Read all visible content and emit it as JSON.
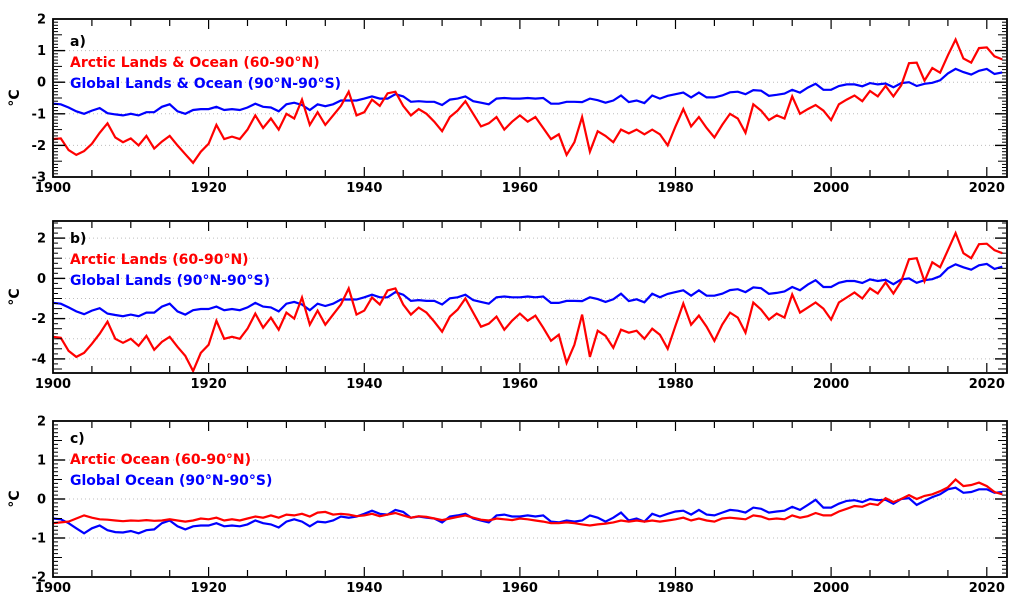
{
  "figure": {
    "unit_label": "°C",
    "background": "#ffffff",
    "colors": {
      "arctic_series": "#ff0000",
      "global_series": "#0000ff",
      "axis": "#000000",
      "gridline": "#bdbdbd"
    },
    "x_axis": {
      "range": [
        1900,
        2022.6
      ],
      "label_years": [
        1900,
        1920,
        1940,
        1960,
        1980,
        2000,
        2020
      ],
      "minor_tick_step_years": 5
    }
  },
  "chart_data": [
    {
      "type": "line",
      "id": "a",
      "panel_label": "a)",
      "ylabel": "°C",
      "x_years": {
        "start": 1900,
        "end": 2022,
        "step": 1
      },
      "ylim": [
        -3,
        2
      ],
      "yticks": [
        -3,
        -2,
        -1,
        0,
        1,
        2
      ],
      "y_minor_step": 0.1,
      "y_medium_step": 0.5,
      "grid": "dotted-horizontal-every-1",
      "legend_position": "top-left",
      "series": [
        {
          "name": "Arctic Lands & Ocean (60-90°N)",
          "color": "#ff0000",
          "values": [
            -1.8,
            -1.78,
            -2.15,
            -2.3,
            -2.18,
            -1.95,
            -1.6,
            -1.3,
            -1.75,
            -1.9,
            -1.78,
            -2.0,
            -1.7,
            -2.1,
            -1.88,
            -1.7,
            -2.0,
            -2.28,
            -2.55,
            -2.2,
            -1.95,
            -1.35,
            -1.8,
            -1.72,
            -1.8,
            -1.5,
            -1.05,
            -1.45,
            -1.15,
            -1.5,
            -1.0,
            -1.15,
            -0.55,
            -1.35,
            -0.95,
            -1.35,
            -1.05,
            -0.75,
            -0.3,
            -1.05,
            -0.95,
            -0.55,
            -0.75,
            -0.35,
            -0.3,
            -0.75,
            -1.05,
            -0.85,
            -1.0,
            -1.25,
            -1.55,
            -1.1,
            -0.9,
            -0.6,
            -1.0,
            -1.4,
            -1.3,
            -1.1,
            -1.5,
            -1.25,
            -1.05,
            -1.25,
            -1.1,
            -1.45,
            -1.8,
            -1.65,
            -2.3,
            -1.9,
            -1.1,
            -2.2,
            -1.55,
            -1.7,
            -1.9,
            -1.5,
            -1.62,
            -1.5,
            -1.65,
            -1.5,
            -1.65,
            -2.0,
            -1.4,
            -0.85,
            -1.4,
            -1.1,
            -1.45,
            -1.75,
            -1.35,
            -1.0,
            -1.15,
            -1.6,
            -0.7,
            -0.9,
            -1.2,
            -1.05,
            -1.15,
            -0.45,
            -1.0,
            -0.85,
            -0.72,
            -0.9,
            -1.2,
            -0.7,
            -0.55,
            -0.42,
            -0.6,
            -0.28,
            -0.45,
            -0.12,
            -0.45,
            -0.1,
            0.6,
            0.62,
            0.05,
            0.45,
            0.3,
            0.85,
            1.35,
            0.75,
            0.62,
            1.08,
            1.1,
            0.82,
            0.72
          ]
        },
        {
          "name": "Global Lands & Ocean (90°N-90°S)",
          "color": "#0000ff",
          "values": [
            -0.68,
            -0.7,
            -0.8,
            -0.92,
            -1.0,
            -0.9,
            -0.82,
            -0.98,
            -1.02,
            -1.05,
            -1.0,
            -1.05,
            -0.95,
            -0.95,
            -0.78,
            -0.7,
            -0.92,
            -1.0,
            -0.88,
            -0.85,
            -0.85,
            -0.78,
            -0.88,
            -0.85,
            -0.88,
            -0.8,
            -0.68,
            -0.78,
            -0.8,
            -0.92,
            -0.7,
            -0.65,
            -0.72,
            -0.88,
            -0.7,
            -0.76,
            -0.7,
            -0.58,
            -0.58,
            -0.58,
            -0.52,
            -0.45,
            -0.52,
            -0.52,
            -0.38,
            -0.45,
            -0.62,
            -0.6,
            -0.62,
            -0.62,
            -0.72,
            -0.55,
            -0.52,
            -0.45,
            -0.6,
            -0.65,
            -0.7,
            -0.52,
            -0.5,
            -0.52,
            -0.52,
            -0.5,
            -0.52,
            -0.5,
            -0.68,
            -0.68,
            -0.62,
            -0.62,
            -0.63,
            -0.52,
            -0.57,
            -0.65,
            -0.58,
            -0.42,
            -0.63,
            -0.58,
            -0.66,
            -0.42,
            -0.52,
            -0.43,
            -0.38,
            -0.33,
            -0.48,
            -0.33,
            -0.48,
            -0.48,
            -0.42,
            -0.32,
            -0.3,
            -0.38,
            -0.25,
            -0.27,
            -0.43,
            -0.4,
            -0.36,
            -0.24,
            -0.33,
            -0.17,
            -0.05,
            -0.24,
            -0.24,
            -0.12,
            -0.07,
            -0.07,
            -0.13,
            -0.03,
            -0.07,
            -0.04,
            -0.16,
            -0.03,
            0.0,
            -0.12,
            -0.05,
            -0.02,
            0.06,
            0.28,
            0.42,
            0.32,
            0.24,
            0.36,
            0.42,
            0.26,
            0.31
          ]
        }
      ]
    },
    {
      "type": "line",
      "id": "b",
      "panel_label": "b)",
      "ylabel": "°C",
      "x_years": {
        "start": 1900,
        "end": 2022,
        "step": 1
      },
      "ylim": [
        -4.7,
        2.85
      ],
      "yticks": [
        -4,
        -2,
        0,
        2
      ],
      "y_minor_step": 0.25,
      "y_medium_step": 0.5,
      "grid": "dotted-horizontal-every-1",
      "legend_position": "top-left",
      "series": [
        {
          "name": "Arctic Lands (60-90°N)",
          "color": "#ff0000",
          "values": [
            -2.9,
            -2.95,
            -3.6,
            -3.9,
            -3.7,
            -3.25,
            -2.75,
            -2.15,
            -3.0,
            -3.2,
            -3.0,
            -3.35,
            -2.85,
            -3.55,
            -3.15,
            -2.9,
            -3.4,
            -3.85,
            -4.6,
            -3.7,
            -3.3,
            -2.1,
            -3.0,
            -2.9,
            -3.0,
            -2.5,
            -1.75,
            -2.45,
            -1.95,
            -2.55,
            -1.7,
            -2.0,
            -0.95,
            -2.3,
            -1.6,
            -2.3,
            -1.8,
            -1.3,
            -0.5,
            -1.8,
            -1.6,
            -0.95,
            -1.3,
            -0.6,
            -0.5,
            -1.3,
            -1.8,
            -1.45,
            -1.7,
            -2.15,
            -2.65,
            -1.9,
            -1.55,
            -1.0,
            -1.7,
            -2.4,
            -2.25,
            -1.9,
            -2.55,
            -2.1,
            -1.75,
            -2.1,
            -1.85,
            -2.45,
            -3.1,
            -2.8,
            -4.2,
            -3.3,
            -1.8,
            -3.9,
            -2.6,
            -2.85,
            -3.45,
            -2.55,
            -2.7,
            -2.6,
            -3.0,
            -2.5,
            -2.8,
            -3.5,
            -2.35,
            -1.25,
            -2.3,
            -1.85,
            -2.4,
            -3.1,
            -2.3,
            -1.7,
            -1.95,
            -2.7,
            -1.2,
            -1.55,
            -2.05,
            -1.75,
            -1.95,
            -0.8,
            -1.7,
            -1.45,
            -1.2,
            -1.5,
            -2.05,
            -1.2,
            -0.95,
            -0.7,
            -1.0,
            -0.5,
            -0.75,
            -0.2,
            -0.75,
            -0.15,
            0.95,
            1.0,
            -0.15,
            0.8,
            0.55,
            1.4,
            2.25,
            1.25,
            1.0,
            1.7,
            1.72,
            1.4,
            1.25
          ]
        },
        {
          "name": "Global Lands (90°N-90°S)",
          "color": "#0000ff",
          "values": [
            -1.22,
            -1.26,
            -1.44,
            -1.64,
            -1.78,
            -1.6,
            -1.48,
            -1.75,
            -1.82,
            -1.88,
            -1.8,
            -1.88,
            -1.7,
            -1.7,
            -1.4,
            -1.26,
            -1.64,
            -1.8,
            -1.58,
            -1.52,
            -1.52,
            -1.4,
            -1.58,
            -1.52,
            -1.58,
            -1.44,
            -1.22,
            -1.4,
            -1.44,
            -1.64,
            -1.26,
            -1.17,
            -1.3,
            -1.58,
            -1.26,
            -1.37,
            -1.26,
            -1.05,
            -1.05,
            -1.05,
            -0.94,
            -0.81,
            -0.94,
            -0.94,
            -0.68,
            -0.81,
            -1.12,
            -1.08,
            -1.12,
            -1.12,
            -1.3,
            -0.99,
            -0.94,
            -0.81,
            -1.08,
            -1.17,
            -1.26,
            -0.94,
            -0.9,
            -0.94,
            -0.94,
            -0.9,
            -0.94,
            -0.9,
            -1.22,
            -1.22,
            -1.12,
            -1.12,
            -1.13,
            -0.94,
            -1.03,
            -1.17,
            -1.04,
            -0.76,
            -1.13,
            -1.04,
            -1.19,
            -0.76,
            -0.94,
            -0.77,
            -0.68,
            -0.59,
            -0.86,
            -0.59,
            -0.86,
            -0.86,
            -0.76,
            -0.58,
            -0.54,
            -0.68,
            -0.45,
            -0.49,
            -0.77,
            -0.72,
            -0.65,
            -0.43,
            -0.59,
            -0.31,
            -0.09,
            -0.43,
            -0.43,
            -0.22,
            -0.13,
            -0.13,
            -0.23,
            -0.05,
            -0.13,
            -0.07,
            -0.29,
            -0.05,
            0.0,
            -0.22,
            -0.09,
            -0.04,
            0.11,
            0.5,
            0.7,
            0.55,
            0.43,
            0.65,
            0.72,
            0.47,
            0.58
          ]
        }
      ]
    },
    {
      "type": "line",
      "id": "c",
      "panel_label": "c)",
      "ylabel": "°C",
      "x_years": {
        "start": 1900,
        "end": 2022,
        "step": 1
      },
      "ylim": [
        -2,
        2
      ],
      "yticks": [
        -2,
        -1,
        0,
        1,
        2
      ],
      "y_minor_step": 0.1,
      "y_medium_step": 0.5,
      "grid": "dotted-horizontal-every-1",
      "legend_position": "top-left",
      "series": [
        {
          "name": "Arctic Ocean (60-90°N)",
          "color": "#ff0000",
          "values": [
            -0.62,
            -0.6,
            -0.58,
            -0.5,
            -0.42,
            -0.48,
            -0.52,
            -0.53,
            -0.55,
            -0.57,
            -0.55,
            -0.56,
            -0.54,
            -0.56,
            -0.55,
            -0.52,
            -0.55,
            -0.58,
            -0.55,
            -0.5,
            -0.52,
            -0.48,
            -0.55,
            -0.52,
            -0.55,
            -0.5,
            -0.45,
            -0.48,
            -0.42,
            -0.48,
            -0.4,
            -0.42,
            -0.38,
            -0.45,
            -0.35,
            -0.33,
            -0.4,
            -0.38,
            -0.4,
            -0.44,
            -0.42,
            -0.38,
            -0.44,
            -0.4,
            -0.36,
            -0.42,
            -0.48,
            -0.44,
            -0.46,
            -0.5,
            -0.54,
            -0.5,
            -0.46,
            -0.42,
            -0.48,
            -0.53,
            -0.55,
            -0.5,
            -0.52,
            -0.54,
            -0.5,
            -0.52,
            -0.55,
            -0.58,
            -0.62,
            -0.62,
            -0.6,
            -0.62,
            -0.65,
            -0.68,
            -0.65,
            -0.63,
            -0.6,
            -0.55,
            -0.58,
            -0.55,
            -0.58,
            -0.55,
            -0.58,
            -0.55,
            -0.52,
            -0.48,
            -0.55,
            -0.5,
            -0.55,
            -0.58,
            -0.5,
            -0.48,
            -0.5,
            -0.52,
            -0.42,
            -0.45,
            -0.52,
            -0.5,
            -0.52,
            -0.42,
            -0.48,
            -0.44,
            -0.36,
            -0.42,
            -0.42,
            -0.32,
            -0.25,
            -0.18,
            -0.2,
            -0.12,
            -0.15,
            0.02,
            -0.08,
            0.0,
            0.1,
            0.0,
            0.08,
            0.12,
            0.2,
            0.3,
            0.5,
            0.33,
            0.36,
            0.42,
            0.33,
            0.18,
            0.12
          ]
        },
        {
          "name": "Global Ocean (90°N-90°S)",
          "color": "#0000ff",
          "values": [
            -0.5,
            -0.52,
            -0.62,
            -0.75,
            -0.88,
            -0.75,
            -0.68,
            -0.8,
            -0.85,
            -0.86,
            -0.82,
            -0.88,
            -0.8,
            -0.78,
            -0.62,
            -0.55,
            -0.7,
            -0.78,
            -0.7,
            -0.68,
            -0.68,
            -0.62,
            -0.7,
            -0.68,
            -0.7,
            -0.65,
            -0.55,
            -0.62,
            -0.65,
            -0.73,
            -0.58,
            -0.52,
            -0.58,
            -0.7,
            -0.58,
            -0.6,
            -0.55,
            -0.45,
            -0.48,
            -0.45,
            -0.38,
            -0.3,
            -0.38,
            -0.4,
            -0.28,
            -0.33,
            -0.48,
            -0.45,
            -0.48,
            -0.5,
            -0.6,
            -0.45,
            -0.42,
            -0.38,
            -0.5,
            -0.55,
            -0.6,
            -0.42,
            -0.4,
            -0.45,
            -0.45,
            -0.42,
            -0.45,
            -0.42,
            -0.58,
            -0.6,
            -0.55,
            -0.58,
            -0.55,
            -0.42,
            -0.48,
            -0.58,
            -0.48,
            -0.35,
            -0.55,
            -0.5,
            -0.58,
            -0.38,
            -0.45,
            -0.38,
            -0.32,
            -0.3,
            -0.4,
            -0.28,
            -0.4,
            -0.42,
            -0.35,
            -0.28,
            -0.3,
            -0.35,
            -0.22,
            -0.25,
            -0.35,
            -0.32,
            -0.3,
            -0.2,
            -0.28,
            -0.15,
            -0.02,
            -0.22,
            -0.22,
            -0.12,
            -0.05,
            -0.03,
            -0.08,
            0.0,
            -0.03,
            -0.02,
            -0.12,
            0.0,
            0.02,
            -0.15,
            -0.05,
            0.05,
            0.12,
            0.25,
            0.29,
            0.16,
            0.18,
            0.25,
            0.25,
            0.16,
            0.18
          ]
        }
      ]
    }
  ]
}
